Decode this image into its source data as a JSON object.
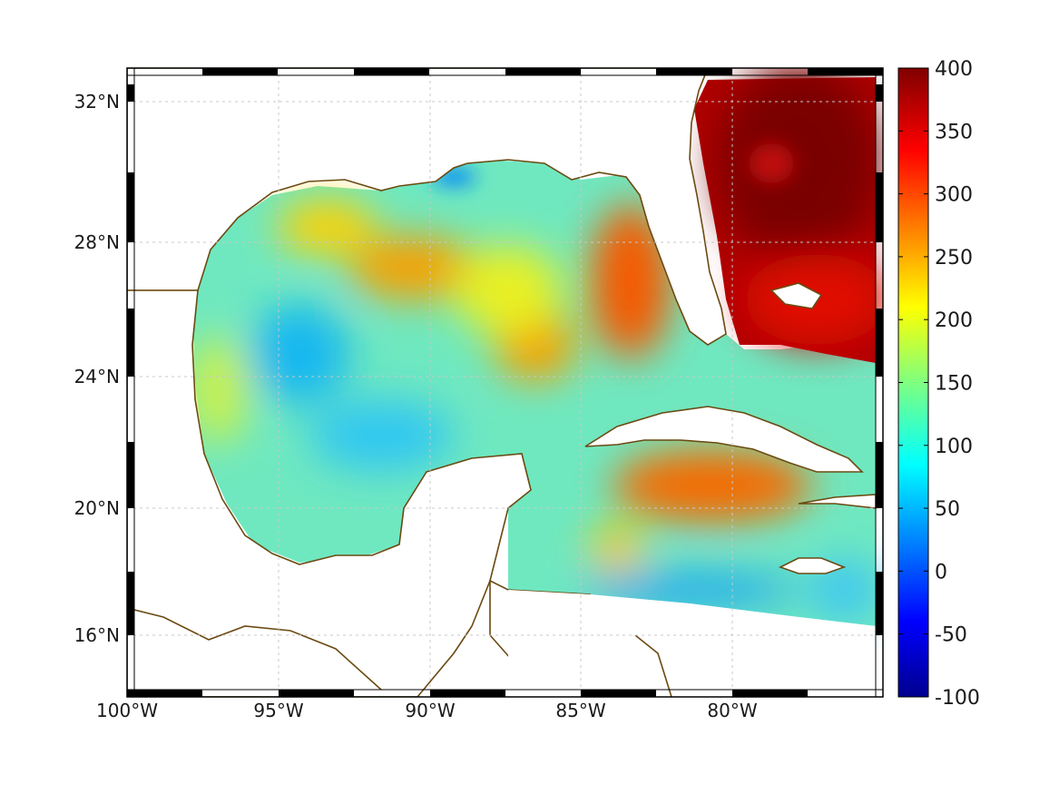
{
  "chart_data": {
    "type": "heatmap",
    "title": "",
    "x_ticks": [
      "100°W",
      "95°W",
      "90°W",
      "85°W",
      "80°W"
    ],
    "x_tick_values": [
      -100,
      -95,
      -90,
      -85,
      -80
    ],
    "y_ticks": [
      "32°N",
      "28°N",
      "24°N",
      "20°N",
      "16°N"
    ],
    "y_tick_values": [
      32,
      28,
      24,
      20,
      16
    ],
    "xlim": [
      -100,
      -75
    ],
    "ylim": [
      14.3,
      33
    ],
    "grid": true,
    "colorbar": {
      "colormap": "jet",
      "min": -100,
      "max": 400,
      "ticks": [
        "400",
        "350",
        "300",
        "250",
        "200",
        "150",
        "100",
        "50",
        "0",
        "-50",
        "-100"
      ],
      "tick_values": [
        400,
        350,
        300,
        250,
        200,
        150,
        100,
        50,
        0,
        -50,
        -100
      ]
    },
    "features": [
      {
        "lon": -77.5,
        "lat": 30.0,
        "value": 400
      },
      {
        "lon": -77.0,
        "lat": 27.5,
        "value": 340
      },
      {
        "lon": -83.2,
        "lat": 26.3,
        "value": 290
      },
      {
        "lon": -91.0,
        "lat": 27.2,
        "value": 270
      },
      {
        "lon": -85.0,
        "lat": 24.5,
        "value": 270
      },
      {
        "lon": -81.0,
        "lat": 20.8,
        "value": 285
      },
      {
        "lon": -84.0,
        "lat": 18.2,
        "value": 220
      },
      {
        "lon": -95.0,
        "lat": 24.0,
        "value": 80
      },
      {
        "lon": -93.0,
        "lat": 21.5,
        "value": 90
      },
      {
        "lon": -82.0,
        "lat": 17.2,
        "value": 70
      }
    ]
  },
  "colors": {
    "coastline": "#6b4a12",
    "background_field": "#7ff0a8"
  }
}
